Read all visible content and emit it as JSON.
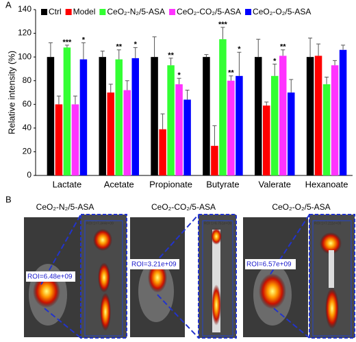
{
  "chart_data": {
    "type": "bar",
    "ylabel": "Relative intensity (%)",
    "categories": [
      "Lactate",
      "Acetate",
      "Propionate",
      "Butyrate",
      "Valerate",
      "Hexanoate"
    ],
    "series": [
      {
        "name": "Ctrl",
        "color": "#000000",
        "values": [
          100,
          100,
          100,
          100,
          100,
          100
        ],
        "errors": [
          12,
          5,
          17,
          2,
          15,
          16
        ],
        "stars": [
          null,
          null,
          null,
          null,
          null,
          null
        ]
      },
      {
        "name": "Model",
        "color": "#ff0000",
        "values": [
          60,
          70,
          39,
          25,
          59,
          101
        ],
        "errors": [
          7,
          7,
          13,
          17,
          3,
          10
        ],
        "stars": [
          null,
          null,
          null,
          null,
          null,
          null
        ]
      },
      {
        "name": "CeO₂-N₂/5-ASA",
        "color": "#33ff33",
        "values": [
          108,
          98,
          93,
          115,
          84,
          77
        ],
        "errors": [
          2,
          8,
          6,
          10,
          10,
          6
        ],
        "stars": [
          "***",
          "**",
          "**",
          "***",
          "*",
          null
        ]
      },
      {
        "name": "CeO₂-CO₂/5-ASA",
        "color": "#ff33ff",
        "values": [
          60,
          72,
          77,
          80,
          101,
          93
        ],
        "errors": [
          7,
          8,
          5,
          4,
          5,
          4
        ],
        "stars": [
          null,
          null,
          "*",
          "**",
          "**",
          null
        ]
      },
      {
        "name": "CeO₂-O₂/5-ASA",
        "color": "#0000ff",
        "values": [
          98,
          99,
          64,
          84,
          70,
          106
        ],
        "errors": [
          14,
          9,
          8,
          20,
          11,
          4
        ],
        "stars": [
          "*",
          "*",
          null,
          "*",
          null,
          null
        ]
      }
    ],
    "ylim": [
      0,
      140
    ],
    "yticks": [
      0,
      20,
      40,
      60,
      80,
      100,
      120,
      140
    ],
    "grid": false
  },
  "panels": {
    "a": "A",
    "b": "B"
  },
  "images": [
    {
      "title": "CeO₂-N₂/5-ASA",
      "roi": "ROI=6.48e+09",
      "inset_roi": "ROI 1=7.344e+09"
    },
    {
      "title": "CeO₂-CO₂/5-ASA",
      "roi": "ROI=3.21e+09",
      "inset_roi": "ROI 1=6.751e+09"
    },
    {
      "title": "CeO₂-O₂/5-ASA",
      "roi": "ROI=6.57e+09",
      "inset_roi": "ROI 1=7.211e+09"
    }
  ]
}
